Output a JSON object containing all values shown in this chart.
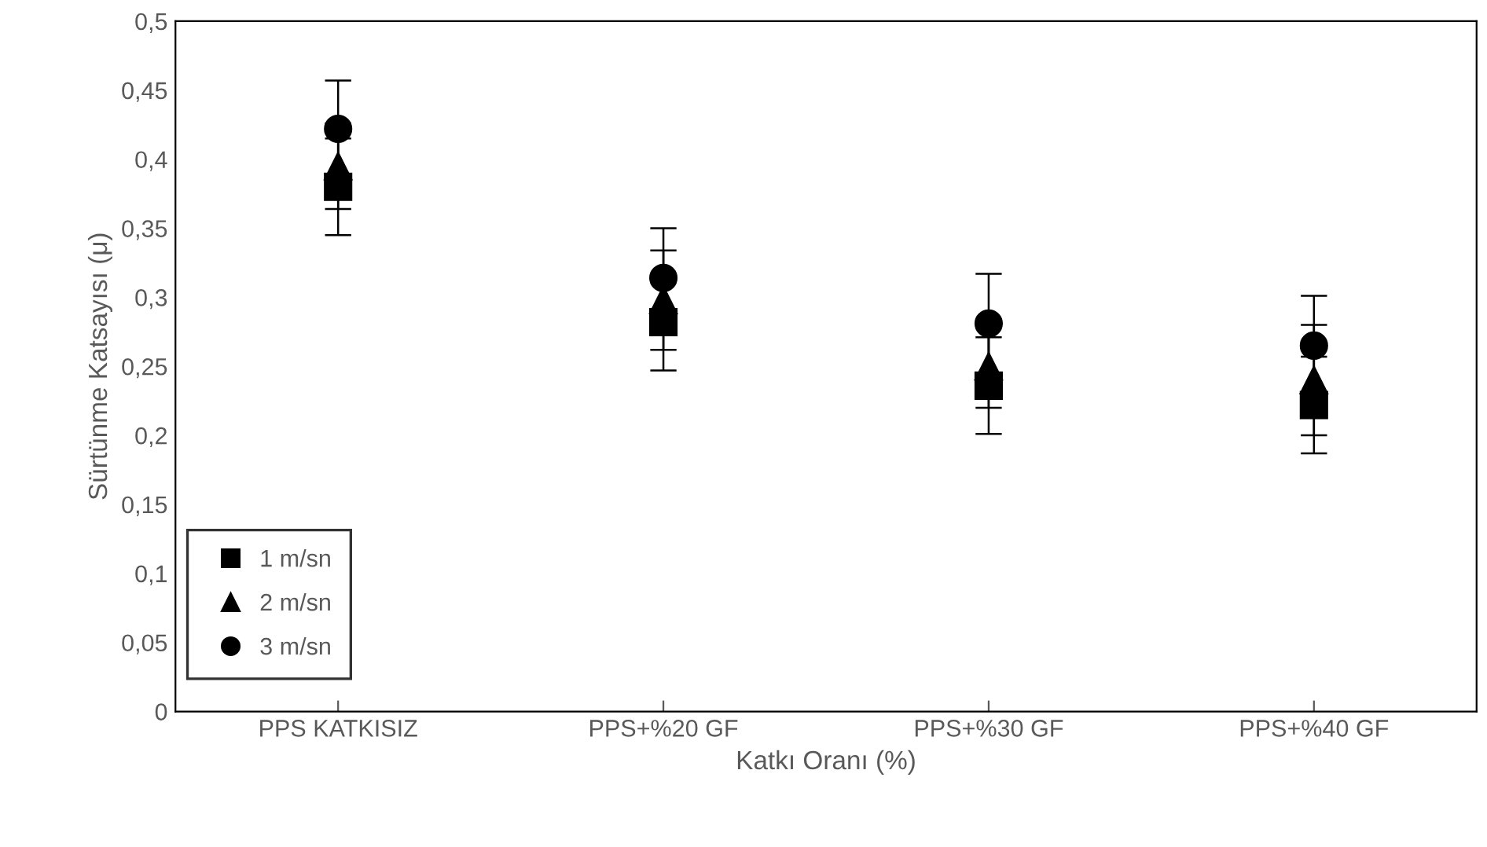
{
  "chart_data": {
    "type": "scatter",
    "xlabel": "Katkı Oranı (%)",
    "ylabel": "Sürtünme Katsayısı (μ)",
    "categories": [
      "PPS KATKISIZ",
      "PPS+%20 GF",
      "PPS+%30 GF",
      "PPS+%40 GF"
    ],
    "series": [
      {
        "name": "1 m/sn",
        "color": "#000000",
        "marker": "square",
        "values": [
          0.38,
          0.282,
          0.236,
          0.222
        ],
        "errors": [
          0.035,
          0.035,
          0.035,
          0.035
        ]
      },
      {
        "name": "2 m/sn",
        "color": "#000000",
        "marker": "triangle",
        "values": [
          0.395,
          0.298,
          0.25,
          0.24
        ],
        "errors": [
          0.031,
          0.036,
          0.03,
          0.04
        ]
      },
      {
        "name": "3 m/sn",
        "color": "#000000",
        "marker": "circle",
        "values": [
          0.422,
          0.314,
          0.281,
          0.265
        ],
        "errors": [
          0.035,
          0.036,
          0.036,
          0.036
        ]
      }
    ],
    "ylim": [
      0,
      0.5
    ],
    "yticks": [
      {
        "value": 0,
        "label": "0"
      },
      {
        "value": 0.05,
        "label": "0,05"
      },
      {
        "value": 0.1,
        "label": "0,1"
      },
      {
        "value": 0.15,
        "label": "0,15"
      },
      {
        "value": 0.2,
        "label": "0,2"
      },
      {
        "value": 0.25,
        "label": "0,25"
      },
      {
        "value": 0.3,
        "label": "0,3"
      },
      {
        "value": 0.35,
        "label": "0,35"
      },
      {
        "value": 0.4,
        "label": "0,4"
      },
      {
        "value": 0.45,
        "label": "0,45"
      },
      {
        "value": 0.5,
        "label": "0,5"
      }
    ],
    "grid": false,
    "legend": "bottom left"
  }
}
